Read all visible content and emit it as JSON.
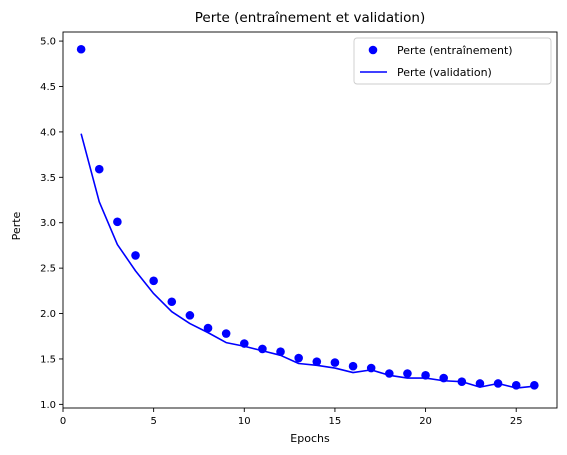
{
  "chart_data": {
    "type": "scatter",
    "title": "Perte (entraînement et validation)",
    "xlabel": "Epochs",
    "ylabel": "Perte",
    "xlim": [
      0,
      27.25
    ],
    "ylim": [
      0.96,
      5.1
    ],
    "xticks": [
      0,
      5,
      10,
      15,
      20,
      25
    ],
    "yticks": [
      1.0,
      1.5,
      2.0,
      2.5,
      3.0,
      3.5,
      4.0,
      4.5,
      5.0
    ],
    "grid": false,
    "legend_position": "top-right",
    "x": [
      1,
      2,
      3,
      4,
      5,
      6,
      7,
      8,
      9,
      10,
      11,
      12,
      13,
      14,
      15,
      16,
      17,
      18,
      19,
      20,
      21,
      22,
      23,
      24,
      25,
      26
    ],
    "series": [
      {
        "name": "Perte (entraînement)",
        "style": "scatter",
        "color": "#0000ff",
        "values": [
          4.91,
          3.59,
          3.01,
          2.64,
          2.36,
          2.13,
          1.98,
          1.84,
          1.78,
          1.67,
          1.61,
          1.58,
          1.51,
          1.47,
          1.46,
          1.42,
          1.4,
          1.34,
          1.34,
          1.32,
          1.29,
          1.25,
          1.23,
          1.23,
          1.21,
          1.21
        ]
      },
      {
        "name": "Perte (validation)",
        "style": "line",
        "color": "#0000ff",
        "values": [
          3.98,
          3.23,
          2.76,
          2.47,
          2.22,
          2.02,
          1.89,
          1.79,
          1.68,
          1.64,
          1.59,
          1.54,
          1.45,
          1.43,
          1.4,
          1.35,
          1.38,
          1.32,
          1.29,
          1.29,
          1.26,
          1.25,
          1.19,
          1.23,
          1.18,
          1.2
        ]
      }
    ]
  }
}
